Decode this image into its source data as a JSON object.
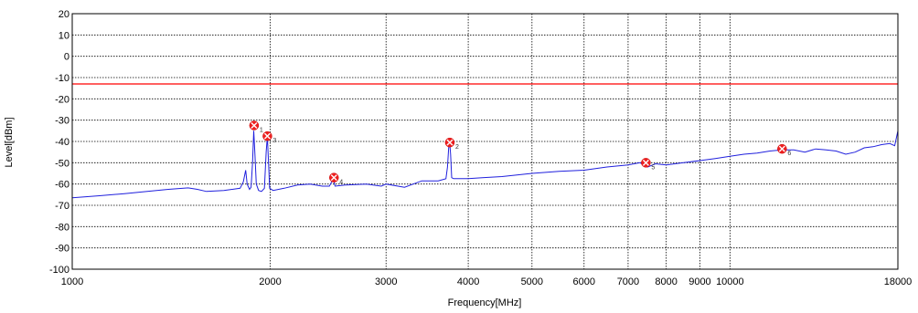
{
  "chart_data": {
    "type": "line",
    "title": "",
    "xlabel": "Frequency[MHz]",
    "ylabel": "Level[dBm]",
    "x_scale": "log",
    "xlim": [
      1000,
      18000
    ],
    "ylim": [
      -100,
      20
    ],
    "grid": true,
    "x_ticks": [
      1000,
      2000,
      3000,
      4000,
      5000,
      6000,
      7000,
      8000,
      9000,
      10000,
      18000
    ],
    "x_tick_labels": [
      "1000",
      "2000",
      "3000",
      "4000",
      "5000",
      "6000",
      "7000",
      "8000",
      "9000",
      "10000",
      "18000"
    ],
    "y_ticks": [
      20,
      10,
      0,
      -10,
      -20,
      -30,
      -40,
      -50,
      -60,
      -70,
      -80,
      -90,
      -100
    ],
    "y_tick_labels": [
      "20",
      "10",
      "0",
      "-10",
      "-20",
      "-30",
      "-40",
      "-50",
      "-60",
      "-70",
      "-80",
      "-90",
      "-100"
    ],
    "limit_line": {
      "y": -13,
      "color": "#ff0000"
    },
    "series": [
      {
        "color": "#2020dd",
        "points": [
          [
            1000,
            -66.5
          ],
          [
            1100,
            -65.5
          ],
          [
            1200,
            -64.5
          ],
          [
            1300,
            -63.5
          ],
          [
            1400,
            -62.5
          ],
          [
            1500,
            -61.8
          ],
          [
            1550,
            -62.5
          ],
          [
            1600,
            -63.5
          ],
          [
            1700,
            -63.0
          ],
          [
            1750,
            -62.5
          ],
          [
            1800,
            -62.0
          ],
          [
            1820,
            -59.0
          ],
          [
            1835,
            -53.5
          ],
          [
            1845,
            -60.0
          ],
          [
            1860,
            -62.5
          ],
          [
            1870,
            -61.5
          ],
          [
            1880,
            -50.0
          ],
          [
            1888,
            -35.0
          ],
          [
            1895,
            -45.0
          ],
          [
            1905,
            -60.0
          ],
          [
            1920,
            -63.0
          ],
          [
            1940,
            -63.5
          ],
          [
            1960,
            -62.0
          ],
          [
            1972,
            -45.0
          ],
          [
            1980,
            -37.5
          ],
          [
            1988,
            -50.0
          ],
          [
            1996,
            -62.0
          ],
          [
            2020,
            -63.0
          ],
          [
            2100,
            -62.0
          ],
          [
            2200,
            -60.5
          ],
          [
            2300,
            -60.0
          ],
          [
            2400,
            -61.0
          ],
          [
            2460,
            -61.0
          ],
          [
            2480,
            -59.0
          ],
          [
            2495,
            -58.0
          ],
          [
            2510,
            -61.0
          ],
          [
            2600,
            -60.5
          ],
          [
            2800,
            -60.0
          ],
          [
            2950,
            -61.0
          ],
          [
            3000,
            -60.0
          ],
          [
            3200,
            -61.5
          ],
          [
            3400,
            -58.5
          ],
          [
            3600,
            -58.5
          ],
          [
            3700,
            -57.5
          ],
          [
            3720,
            -52.0
          ],
          [
            3735,
            -43.0
          ],
          [
            3748,
            -40.5
          ],
          [
            3760,
            -46.0
          ],
          [
            3775,
            -57.0
          ],
          [
            3800,
            -57.5
          ],
          [
            4000,
            -57.5
          ],
          [
            4200,
            -57.0
          ],
          [
            4500,
            -56.5
          ],
          [
            5000,
            -55.0
          ],
          [
            5500,
            -54.0
          ],
          [
            6000,
            -53.5
          ],
          [
            6500,
            -52.0
          ],
          [
            7000,
            -51.0
          ],
          [
            7300,
            -50.0
          ],
          [
            7500,
            -52.0
          ],
          [
            7700,
            -50.5
          ],
          [
            8000,
            -51.0
          ],
          [
            8500,
            -50.0
          ],
          [
            9000,
            -49.0
          ],
          [
            9500,
            -48.0
          ],
          [
            10000,
            -47.0
          ],
          [
            10500,
            -46.0
          ],
          [
            11000,
            -45.5
          ],
          [
            11500,
            -44.5
          ],
          [
            12000,
            -44.0
          ],
          [
            12500,
            -44.0
          ],
          [
            13000,
            -45.0
          ],
          [
            13500,
            -43.5
          ],
          [
            14000,
            -44.0
          ],
          [
            14500,
            -44.5
          ],
          [
            15000,
            -46.0
          ],
          [
            15500,
            -45.0
          ],
          [
            16000,
            -43.0
          ],
          [
            16500,
            -42.5
          ],
          [
            17000,
            -41.5
          ],
          [
            17500,
            -41.0
          ],
          [
            17800,
            -42.0
          ],
          [
            18000,
            -35.0
          ]
        ]
      }
    ],
    "markers": [
      {
        "label": "1",
        "x": 1890,
        "y": -32.5
      },
      {
        "label": "3",
        "x": 1980,
        "y": -37.5
      },
      {
        "label": "4",
        "x": 2500,
        "y": -57.0
      },
      {
        "label": "2",
        "x": 3750,
        "y": -40.5
      },
      {
        "label": "5",
        "x": 7450,
        "y": -50.0
      },
      {
        "label": "6",
        "x": 12000,
        "y": -43.5
      }
    ]
  }
}
